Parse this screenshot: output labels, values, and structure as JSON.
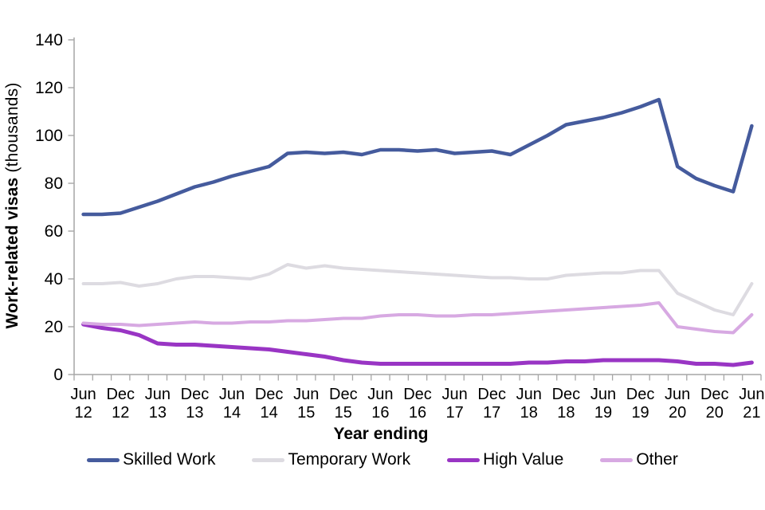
{
  "chart_data": {
    "type": "line",
    "y_axis_title_bold": "Work-related visas",
    "y_axis_title_normal": " (thousands)",
    "x_axis_title": "Year ending",
    "ylim": [
      0,
      140
    ],
    "y_ticks": [
      0,
      20,
      40,
      60,
      80,
      100,
      120,
      140
    ],
    "grid": false,
    "legend_position": "bottom",
    "axis_color": "#a6a6a6",
    "text_color": "#000000",
    "x_tick_labels": [
      {
        "month": "Jun",
        "year": "12"
      },
      {
        "month": "Dec",
        "year": "12"
      },
      {
        "month": "Jun",
        "year": "13"
      },
      {
        "month": "Dec",
        "year": "13"
      },
      {
        "month": "Jun",
        "year": "14"
      },
      {
        "month": "Dec",
        "year": "14"
      },
      {
        "month": "Jun",
        "year": "15"
      },
      {
        "month": "Dec",
        "year": "15"
      },
      {
        "month": "Jun",
        "year": "16"
      },
      {
        "month": "Dec",
        "year": "16"
      },
      {
        "month": "Jun",
        "year": "17"
      },
      {
        "month": "Dec",
        "year": "17"
      },
      {
        "month": "Jun",
        "year": "18"
      },
      {
        "month": "Dec",
        "year": "18"
      },
      {
        "month": "Jun",
        "year": "19"
      },
      {
        "month": "Dec",
        "year": "19"
      },
      {
        "month": "Jun",
        "year": "20"
      },
      {
        "month": "Dec",
        "year": "20"
      },
      {
        "month": "Jun",
        "year": "21"
      }
    ],
    "x": [
      "Jun 12",
      "Sep 12",
      "Dec 12",
      "Mar 13",
      "Jun 13",
      "Sep 13",
      "Dec 13",
      "Mar 14",
      "Jun 14",
      "Sep 14",
      "Dec 14",
      "Mar 15",
      "Jun 15",
      "Sep 15",
      "Dec 15",
      "Mar 16",
      "Jun 16",
      "Sep 16",
      "Dec 16",
      "Mar 17",
      "Jun 17",
      "Sep 17",
      "Dec 17",
      "Mar 18",
      "Jun 18",
      "Sep 18",
      "Dec 18",
      "Mar 19",
      "Jun 19",
      "Sep 19",
      "Dec 19",
      "Mar 20",
      "Jun 20",
      "Sep 20",
      "Dec 20",
      "Mar 21",
      "Jun 21"
    ],
    "series": [
      {
        "name": "Skilled Work",
        "color": "#455b9d",
        "stroke_width": 4.5,
        "values": [
          67,
          67,
          67.5,
          70,
          72.5,
          75.5,
          78.5,
          80.5,
          83,
          85,
          87,
          92.5,
          93,
          92.5,
          93,
          92,
          94,
          94,
          93.5,
          94,
          92.5,
          93,
          93.5,
          92,
          96,
          100,
          104.5,
          106,
          107.5,
          109.5,
          112,
          115,
          87,
          82,
          79,
          76.5,
          104
        ]
      },
      {
        "name": "Temporary Work",
        "color": "#dddbe1",
        "stroke_width": 4,
        "values": [
          38,
          38,
          38.5,
          37,
          38,
          40,
          41,
          41,
          40.5,
          40,
          42,
          46,
          44.5,
          45.5,
          44.5,
          44,
          43.5,
          43,
          42.5,
          42,
          41.5,
          41,
          40.5,
          40.5,
          40,
          40,
          41.5,
          42,
          42.5,
          42.5,
          43.5,
          43.5,
          34,
          30.5,
          27,
          25,
          38
        ]
      },
      {
        "name": "High Value",
        "color": "#9935c4",
        "stroke_width": 5,
        "values": [
          21,
          19.5,
          18.5,
          16.5,
          13,
          12.5,
          12.5,
          12,
          11.5,
          11,
          10.5,
          9.5,
          8.5,
          7.5,
          6,
          5,
          4.5,
          4.5,
          4.5,
          4.5,
          4.5,
          4.5,
          4.5,
          4.5,
          5,
          5,
          5.5,
          5.5,
          6,
          6,
          6,
          6,
          5.5,
          4.5,
          4.5,
          4,
          5
        ]
      },
      {
        "name": "Other",
        "color": "#d7a9e2",
        "stroke_width": 4,
        "values": [
          21.5,
          21,
          21,
          20.5,
          21,
          21.5,
          22,
          21.5,
          21.5,
          22,
          22,
          22.5,
          22.5,
          23,
          23.5,
          23.5,
          24.5,
          25,
          25,
          24.5,
          24.5,
          25,
          25,
          25.5,
          26,
          26.5,
          27,
          27.5,
          28,
          28.5,
          29,
          30,
          20,
          19,
          18,
          17.5,
          25
        ]
      }
    ]
  }
}
